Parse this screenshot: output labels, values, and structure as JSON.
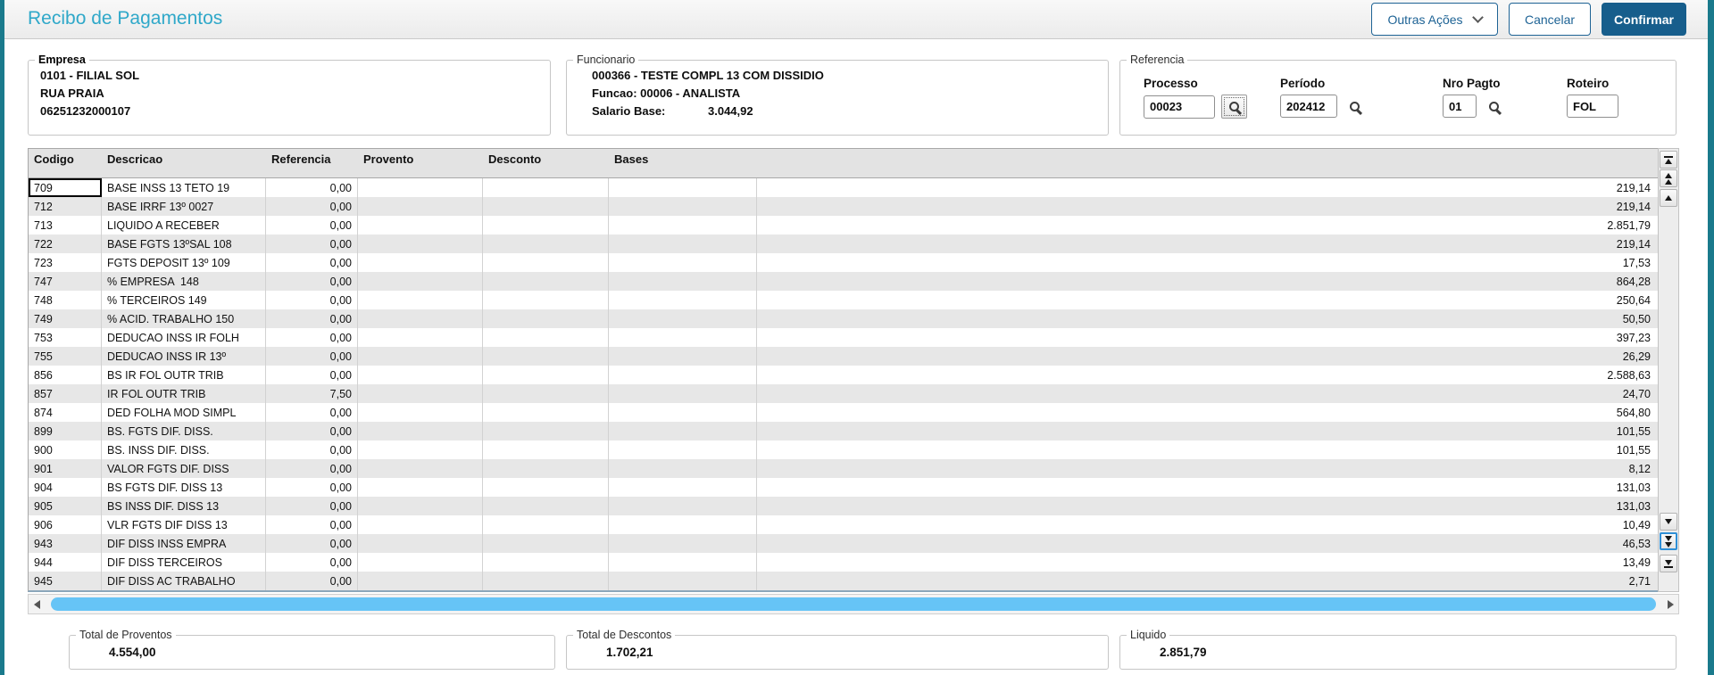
{
  "header": {
    "title": "Recibo de Pagamentos",
    "outras_acoes_label": "Outras Ações",
    "cancelar_label": "Cancelar",
    "confirmar_label": "Confirmar"
  },
  "empresa": {
    "legend": "Empresa",
    "line1": "0101 - FILIAL SOL",
    "line2": "RUA PRAIA",
    "line3": "06251232000107"
  },
  "funcionario": {
    "legend": "Funcionario",
    "line1": "000366 - TESTE COMPL 13 COM DISSIDIO",
    "line2": "Funcao: 00006 - ANALISTA",
    "salario_label": "Salario Base:",
    "salario_value": "3.044,92"
  },
  "referencia": {
    "legend": "Referencia",
    "fields": [
      {
        "label": "Processo",
        "value": "00023",
        "lookup": true
      },
      {
        "label": "Período",
        "value": "202412",
        "lookup": true
      },
      {
        "label": "Nro Pagto",
        "value": "01",
        "lookup": true
      },
      {
        "label": "Roteiro",
        "value": "FOL",
        "lookup": false
      }
    ]
  },
  "grid": {
    "columns": [
      "Codigo",
      "Descricao",
      "Referencia",
      "Provento",
      "Desconto",
      "Bases"
    ],
    "rows": [
      {
        "codigo": "709",
        "descricao": "BASE INSS 13 TETO 19",
        "referencia": "0,00",
        "valor": "219,14"
      },
      {
        "codigo": "712",
        "descricao": "BASE IRRF 13º 0027",
        "referencia": "0,00",
        "valor": "219,14"
      },
      {
        "codigo": "713",
        "descricao": "LIQUIDO A RECEBER",
        "referencia": "0,00",
        "valor": "2.851,79"
      },
      {
        "codigo": "722",
        "descricao": "BASE FGTS 13ºSAL 108",
        "referencia": "0,00",
        "valor": "219,14"
      },
      {
        "codigo": "723",
        "descricao": "FGTS DEPOSIT 13º 109",
        "referencia": "0,00",
        "valor": "17,53"
      },
      {
        "codigo": "747",
        "descricao": "% EMPRESA  148",
        "referencia": "0,00",
        "valor": "864,28"
      },
      {
        "codigo": "748",
        "descricao": "% TERCEIROS 149",
        "referencia": "0,00",
        "valor": "250,64"
      },
      {
        "codigo": "749",
        "descricao": "% ACID. TRABALHO 150",
        "referencia": "0,00",
        "valor": "50,50"
      },
      {
        "codigo": "753",
        "descricao": "DEDUCAO INSS IR FOLH",
        "referencia": "0,00",
        "valor": "397,23"
      },
      {
        "codigo": "755",
        "descricao": "DEDUCAO INSS IR 13º",
        "referencia": "0,00",
        "valor": "26,29"
      },
      {
        "codigo": "856",
        "descricao": "BS IR FOL OUTR TRIB",
        "referencia": "0,00",
        "valor": "2.588,63"
      },
      {
        "codigo": "857",
        "descricao": "IR FOL OUTR TRIB",
        "referencia": "7,50",
        "valor": "24,70"
      },
      {
        "codigo": "874",
        "descricao": "DED FOLHA MOD SIMPL",
        "referencia": "0,00",
        "valor": "564,80"
      },
      {
        "codigo": "899",
        "descricao": "BS. FGTS DIF. DISS.",
        "referencia": "0,00",
        "valor": "101,55"
      },
      {
        "codigo": "900",
        "descricao": "BS. INSS DIF. DISS.",
        "referencia": "0,00",
        "valor": "101,55"
      },
      {
        "codigo": "901",
        "descricao": "VALOR FGTS DIF. DISS",
        "referencia": "0,00",
        "valor": "8,12"
      },
      {
        "codigo": "904",
        "descricao": "BS FGTS DIF. DISS 13",
        "referencia": "0,00",
        "valor": "131,03"
      },
      {
        "codigo": "905",
        "descricao": "BS INSS DIF. DISS 13",
        "referencia": "0,00",
        "valor": "131,03"
      },
      {
        "codigo": "906",
        "descricao": "VLR FGTS DIF DISS 13",
        "referencia": "0,00",
        "valor": "10,49"
      },
      {
        "codigo": "943",
        "descricao": "DIF DISS INSS EMPRA",
        "referencia": "0,00",
        "valor": "46,53"
      },
      {
        "codigo": "944",
        "descricao": "DIF DISS TERCEIROS",
        "referencia": "0,00",
        "valor": "13,49"
      },
      {
        "codigo": "945",
        "descricao": "DIF DISS AC TRABALHO",
        "referencia": "0,00",
        "valor": "2,71"
      }
    ]
  },
  "totals": {
    "proventos_legend": "Total de Proventos",
    "proventos_value": "4.554,00",
    "descontos_legend": "Total de Descontos",
    "descontos_value": "1.702,21",
    "liquido_legend": "Liquido",
    "liquido_value": "2.851,79"
  },
  "colors": {
    "frame_teal": "#1A7A8C",
    "title_cyan": "#2FA8C9",
    "button_blue": "#1E6395",
    "confirm_bg": "#175E8C",
    "thumb_blue": "#66C4F6",
    "grid_header_bg": "#E3E3E3",
    "row_alt": "#E7E7E7"
  }
}
